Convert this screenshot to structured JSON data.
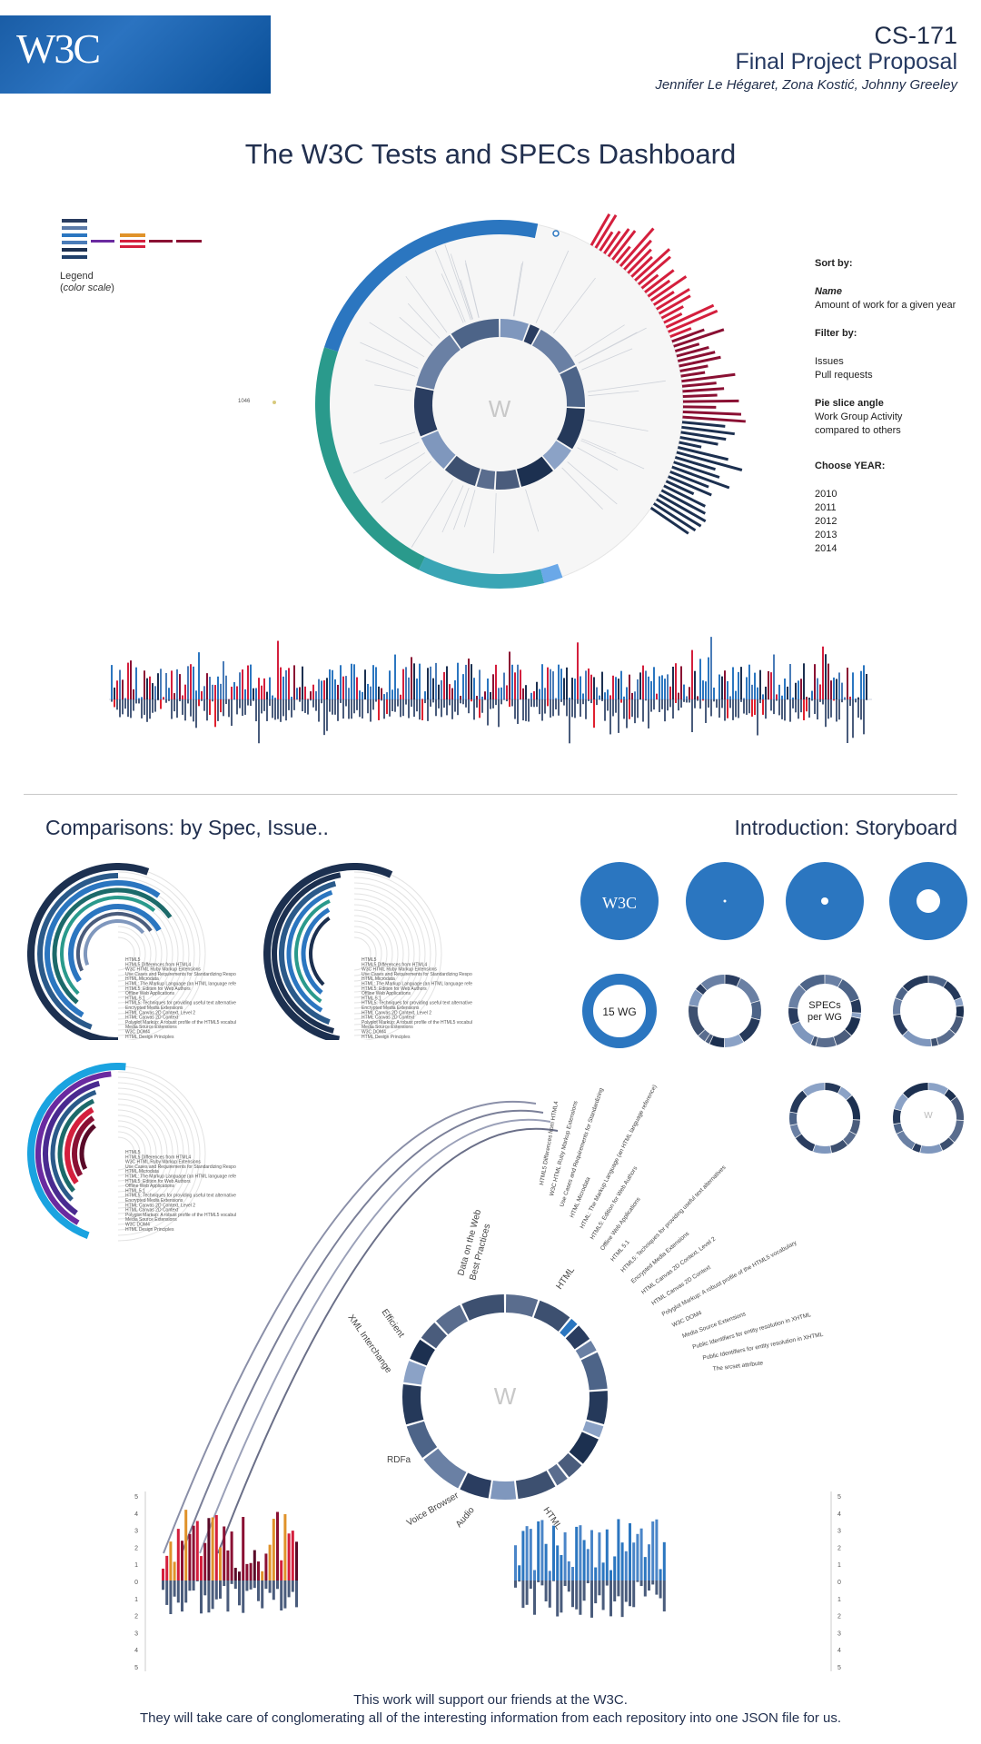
{
  "header": {
    "logo_text": "W3C",
    "course": "CS-171",
    "subtitle": "Final Project Proposal",
    "authors": "Jennifer Le Hégaret, Zona Kostić, Johnny Greeley"
  },
  "main_title": "The W3C Tests and SPECs Dashboard",
  "legend": {
    "label": "Legend",
    "sub": "color scale"
  },
  "controls": {
    "sort_label": "Sort by:",
    "sort_name": "Name",
    "sort_amount": "Amount of work for a given year",
    "filter_label": "Filter by:",
    "filter_issues": "Issues",
    "filter_prs": "Pull requests",
    "pie_label": "Pie slice angle",
    "pie_desc1": "Work Group Activity",
    "pie_desc2": "compared to others",
    "year_label": "Choose YEAR:",
    "years": [
      "2010",
      "2011",
      "2012",
      "2013",
      "2014"
    ]
  },
  "center_letter": "W",
  "marker_label": "1046",
  "sections": {
    "comparisons": "Comparisons: by Spec, Issue..",
    "storyboard": "Introduction: Storyboard"
  },
  "spec_list": [
    "HTML5",
    "HTML5 Differences from HTML4",
    "W3C HTML Ruby Markup Extensions",
    "Use Cases and Requirements for Standardizing Responsive Images",
    "HTML Microdata",
    "HTML: The Markup Language (an HTML language reference)",
    "HTML5: Edition for Web Authors",
    "Offline Web Applications",
    "HTML 5.1",
    "HTML5: Techniques for providing useful text alternatives",
    "Encrypted Media Extensions",
    "HTML Canvas 2D Context, Level 2",
    "HTML Canvas 2D Context",
    "Polyglot Markup: A robust profile of the HTML5 vocabulary",
    "Media Source Extensions",
    "W3C DOM4",
    "HTML Design Principles"
  ],
  "fan_labels": [
    "HTML5 Differences from HTML4",
    "W3C HTML Ruby Markup Extensions",
    "Use Cases and Requirements for Standardizing",
    "HTML Microdata",
    "HTML: The Markup Language (an HTML language reference)",
    "HTML5: Edition for Web Authors",
    "Offline Web Applications",
    "HTML 5.1",
    "HTML5: Techniques for providing useful text alternatives",
    "Encrypted Media Extensions",
    "HTML Canvas 2D Context, Level 2",
    "HTML Canvas 2D Context",
    "Polyglot Markup: A robust profile of the HTML5 vocabulary",
    "W3C DOM4",
    "Media Source Extensions",
    "Public Identifiers for entity resolution in XHTML",
    "Public Identifiers for entity resolution in XHTML",
    "The srcset attribute"
  ],
  "wg_labels": {
    "data_web_1": "Data on the Web",
    "data_web_2": "Best Practices",
    "html": "HTML",
    "xml_1": "Efficient",
    "xml_2": "XML Interchange",
    "rdfa": "RDFa",
    "voice": "Voice Browser",
    "audio": "Audio",
    "html_bottom": "HTML"
  },
  "storyboard": {
    "logo": "W3C",
    "wg_count": "15 WG",
    "specs_per_wg_1": "SPECs",
    "specs_per_wg_2": "per WG"
  },
  "axis_ticks_left": [
    "5",
    "4",
    "3",
    "2",
    "1",
    "0",
    "1",
    "2",
    "3",
    "4",
    "5"
  ],
  "axis_ticks_right": [
    "5",
    "4",
    "3",
    "2",
    "1",
    "0",
    "1",
    "2",
    "3",
    "4",
    "5"
  ],
  "footer": {
    "line1": "This work will support our friends at the W3C.",
    "line2": "They will take care of conglomerating all of the interesting information from each repository into one JSON file for us."
  },
  "colors": {
    "blue": "#2b76c0",
    "navy": "#1c3050",
    "slate": "#4a5c7c",
    "teal": "#29a3a7",
    "green": "#2a9a8c",
    "red": "#d41f3d",
    "crimson": "#8a1033",
    "orange": "#e0922a",
    "purple": "#6a2aa0"
  }
}
